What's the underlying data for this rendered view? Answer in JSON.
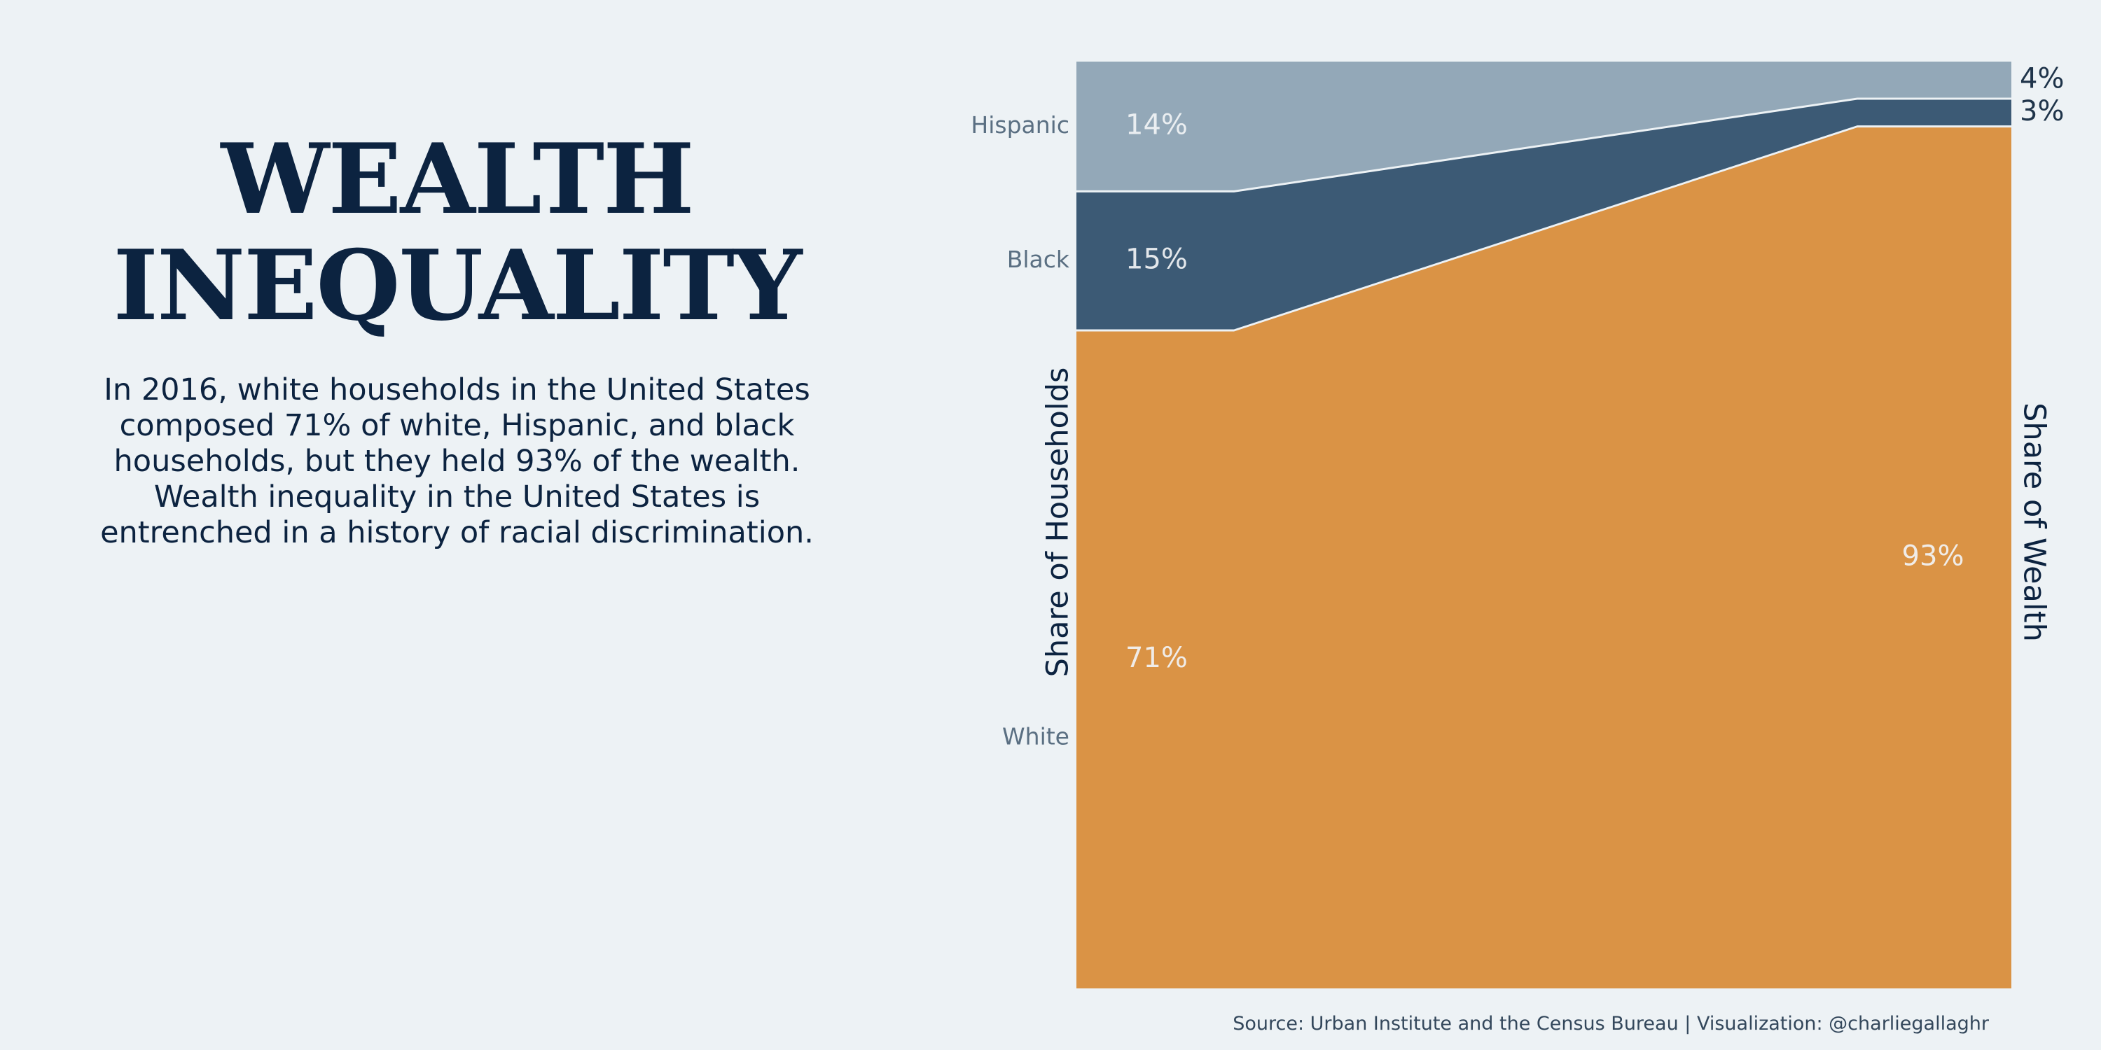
{
  "title": {
    "line1": "WEALTH",
    "line2": "INEQUALITY"
  },
  "description": "In 2016, white households in the United States composed 71% of white, Hispanic, and black households, but they held 93% of the wealth. Wealth inequality in the United States is entrenched in a history of racial discrimination.",
  "source": "Source: Urban Institute and the Census Bureau  |  Visualization: @charliegallaghr",
  "colors": {
    "background": "#edf2f5",
    "White": "#da9345",
    "Black": "#3c5a75",
    "Hispanic": "#93a8b8",
    "title": "#0c2340"
  },
  "chart_data": {
    "type": "area",
    "x": [
      "Share of Households",
      "Share of Wealth"
    ],
    "xlabel": "",
    "ylabel": "",
    "ylim": [
      0,
      100
    ],
    "stack_order": [
      "White",
      "Black",
      "Hispanic"
    ],
    "series": [
      {
        "name": "White",
        "values": [
          71,
          93
        ],
        "labels": [
          "71%",
          "93%"
        ]
      },
      {
        "name": "Black",
        "values": [
          15,
          3
        ],
        "labels": [
          "15%",
          "3%"
        ]
      },
      {
        "name": "Hispanic",
        "values": [
          14,
          4
        ],
        "labels": [
          "14%",
          "4%"
        ]
      }
    ],
    "legend": "category labels at left edge",
    "grid": false
  }
}
